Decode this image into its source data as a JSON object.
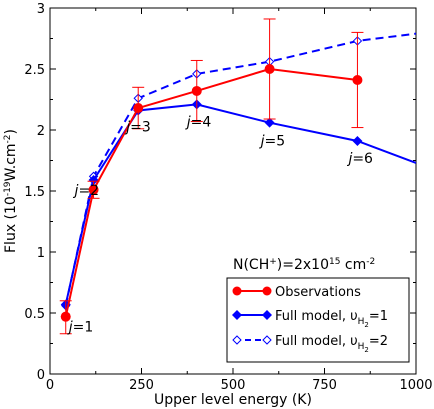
{
  "chart_data": {
    "type": "line",
    "xlabel": "Upper level energy (K)",
    "ylabel": "Flux (10",
    "ylabel_sup": "-19",
    "ylabel_suffix": "W.cm",
    "ylabel_sup2": "-2",
    "ylabel_end": ")",
    "xlim": [
      0,
      1000
    ],
    "ylim": [
      0,
      3
    ],
    "xticks": [
      0,
      250,
      500,
      750,
      1000
    ],
    "yticks": [
      0,
      0.5,
      1,
      1.5,
      2,
      2.5,
      3
    ],
    "xtick_labels": [
      "0",
      "250",
      "500",
      "750",
      "1000"
    ],
    "ytick_labels": [
      "0",
      "0.5",
      "1",
      "1.5",
      "2",
      "2.5",
      "3"
    ],
    "grid": false,
    "legend_position": "bottom-right",
    "annotation": {
      "main": "N(CH",
      "sup1": "+",
      "mid": ")=2x10",
      "sup2": "15",
      "end": " cm",
      "sup3": "-2"
    },
    "series": [
      {
        "name": "Observations",
        "color": "#ff0000",
        "style": "solid",
        "marker": "circle",
        "x": [
          43,
          119,
          241,
          401,
          600,
          840
        ],
        "y": [
          0.47,
          1.51,
          2.18,
          2.32,
          2.5,
          2.41
        ],
        "yerr_low": [
          0.33,
          1.44,
          2.01,
          2.07,
          2.09,
          2.02
        ],
        "yerr_high": [
          0.6,
          1.58,
          2.35,
          2.57,
          2.91,
          2.8
        ]
      },
      {
        "name": "Full model, υ",
        "name_sub": "H",
        "name_subsub": "2",
        "name_end": "=1",
        "color": "#0000ff",
        "style": "solid",
        "marker": "diamond-filled",
        "x": [
          43,
          119,
          241,
          401,
          600,
          840,
          1000
        ],
        "y": [
          0.57,
          1.59,
          2.16,
          2.21,
          2.06,
          1.91,
          1.73
        ]
      },
      {
        "name": "Full model, υ",
        "name_sub": "H",
        "name_subsub": "2",
        "name_end": "=2",
        "color": "#0000ff",
        "style": "dashed",
        "marker": "diamond-open",
        "x": [
          43,
          119,
          241,
          401,
          600,
          840,
          1000
        ],
        "y": [
          0.56,
          1.62,
          2.26,
          2.46,
          2.56,
          2.73,
          2.79
        ]
      }
    ],
    "labels": [
      {
        "j": "j",
        "text": "=1",
        "x": 43,
        "y": 0.47
      },
      {
        "j": "j",
        "text": "=2",
        "x": 119,
        "y": 1.51
      },
      {
        "j": "j",
        "text": "=3",
        "x": 241,
        "y": 2.16
      },
      {
        "j": "j",
        "text": "=4",
        "x": 401,
        "y": 2.21
      },
      {
        "j": "j",
        "text": "=5",
        "x": 600,
        "y": 2.06
      },
      {
        "j": "j",
        "text": "=6",
        "x": 840,
        "y": 1.91
      }
    ]
  }
}
